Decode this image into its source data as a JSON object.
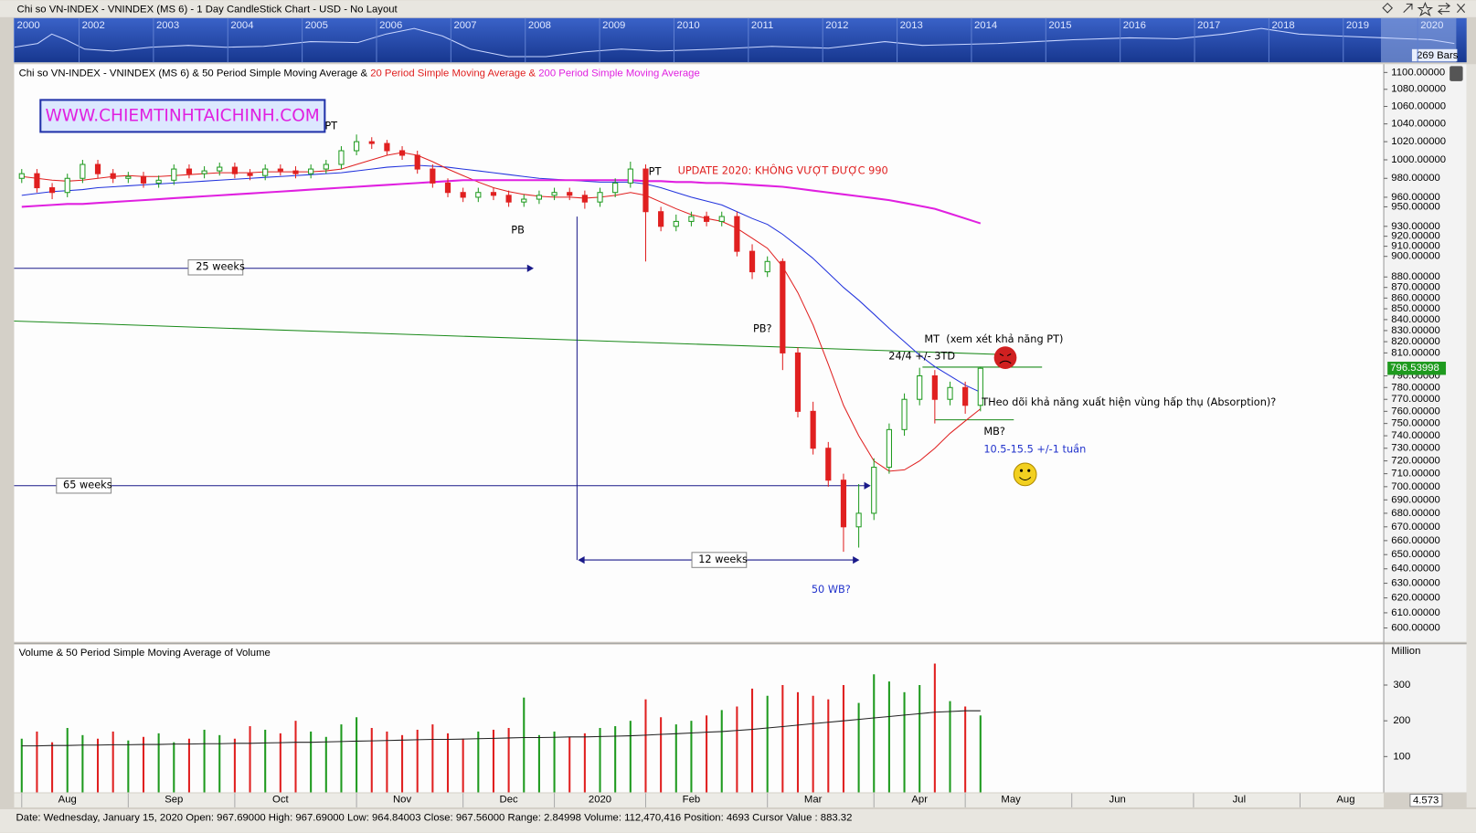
{
  "window": {
    "title": "Chi so VN-INDEX - VNINDEX (MS 6) - 1 Day CandleStick Chart - USD - No Layout"
  },
  "overview": {
    "years": [
      2000,
      2002,
      2003,
      2004,
      2005,
      2006,
      2007,
      2008,
      2009,
      2010,
      2011,
      2012,
      2013,
      2014,
      2015,
      2016,
      2017,
      2018,
      2019,
      2020
    ],
    "bars_label": "269 Bars"
  },
  "status_bar": {
    "text": "Date: Wednesday, January 15, 2020 Open: 967.69000 High: 967.69000 Low: 964.84003 Close: 967.56000 Range: 2.84998 Volume: 112,470,416 Position: 4693 Cursor Value : 883.32",
    "zoom": "4.573"
  },
  "chart_data": [
    {
      "type": "candlestick",
      "title": "Chi so VN-INDEX - VNINDEX (MS 6)",
      "title_joiner": " & ",
      "log_scale": true,
      "up_color": "#1e9a1e",
      "down_color": "#e02020",
      "categories": [
        null,
        null,
        null,
        "Aug",
        null,
        null,
        null,
        null,
        null,
        null,
        "Sep",
        null,
        null,
        null,
        null,
        null,
        null,
        "Oct",
        null,
        null,
        null,
        null,
        null,
        null,
        null,
        "Nov",
        null,
        null,
        null,
        null,
        null,
        null,
        "Dec",
        null,
        null,
        null,
        null,
        null,
        "2020",
        null,
        null,
        null,
        null,
        null,
        "Feb",
        null,
        null,
        null,
        null,
        null,
        null,
        null,
        "Mar",
        null,
        null,
        null,
        null,
        null,
        null,
        "Apr",
        null,
        null,
        null,
        null,
        null,
        "May",
        null,
        null,
        null,
        null,
        null,
        null,
        "Jun",
        null,
        null,
        null,
        null,
        null,
        null,
        null,
        "Jul",
        null,
        null,
        null,
        null,
        null,
        null,
        "Aug",
        null,
        null
      ],
      "open": [
        980,
        985,
        970,
        965,
        980,
        995,
        985,
        980,
        982,
        975,
        978,
        990,
        985,
        988,
        992,
        985,
        983,
        990,
        988,
        985,
        990,
        995,
        1010,
        1020,
        1018,
        1010,
        1005,
        990,
        975,
        965,
        960,
        965,
        962,
        955,
        958,
        962,
        965,
        962,
        955,
        965,
        975,
        990,
        945,
        930,
        935,
        940,
        935,
        940,
        905,
        885,
        895,
        810,
        760,
        730,
        705,
        670,
        680,
        715,
        745,
        770,
        790,
        770,
        780,
        765,
        null,
        null,
        null,
        null,
        null,
        null,
        null,
        null,
        null,
        null,
        null,
        null,
        null,
        null,
        null,
        null,
        null,
        null,
        null,
        null,
        null,
        null,
        null,
        null,
        null,
        null
      ],
      "high": [
        990,
        990,
        975,
        985,
        1000,
        1000,
        990,
        987,
        987,
        983,
        995,
        995,
        993,
        997,
        997,
        990,
        995,
        995,
        993,
        995,
        1000,
        1015,
        1028,
        1025,
        1022,
        1015,
        1010,
        995,
        980,
        970,
        970,
        970,
        967,
        963,
        967,
        970,
        970,
        967,
        970,
        980,
        998,
        995,
        950,
        942,
        945,
        945,
        945,
        945,
        912,
        900,
        898,
        815,
        768,
        735,
        710,
        702,
        722,
        750,
        775,
        797,
        795,
        785,
        785,
        798,
        null,
        null,
        null,
        null,
        null,
        null,
        null,
        null,
        null,
        null,
        null,
        null,
        null,
        null,
        null,
        null,
        null,
        null,
        null,
        null,
        null,
        null,
        null,
        null,
        null,
        null
      ],
      "low": [
        975,
        965,
        958,
        960,
        975,
        980,
        975,
        975,
        970,
        970,
        973,
        980,
        980,
        983,
        980,
        978,
        978,
        983,
        980,
        980,
        985,
        990,
        1005,
        1012,
        1005,
        1000,
        985,
        970,
        960,
        955,
        955,
        957,
        950,
        950,
        953,
        957,
        957,
        948,
        950,
        960,
        970,
        895,
        925,
        925,
        930,
        930,
        930,
        900,
        878,
        880,
        795,
        755,
        725,
        700,
        652,
        655,
        675,
        710,
        740,
        765,
        750,
        765,
        758,
        760,
        null,
        null,
        null,
        null,
        null,
        null,
        null,
        null,
        null,
        null,
        null,
        null,
        null,
        null,
        null,
        null,
        null,
        null,
        null,
        null,
        null,
        null,
        null,
        null,
        null,
        null
      ],
      "close": [
        985,
        970,
        965,
        980,
        995,
        985,
        980,
        982,
        975,
        978,
        990,
        985,
        988,
        992,
        985,
        983,
        990,
        988,
        985,
        990,
        995,
        1010,
        1020,
        1018,
        1010,
        1005,
        990,
        975,
        965,
        960,
        965,
        962,
        955,
        958,
        962,
        965,
        962,
        955,
        965,
        975,
        990,
        945,
        930,
        935,
        940,
        935,
        940,
        905,
        885,
        895,
        810,
        760,
        730,
        705,
        670,
        680,
        715,
        745,
        770,
        790,
        770,
        780,
        765,
        796.53998,
        null,
        null,
        null,
        null,
        null,
        null,
        null,
        null,
        null,
        null,
        null,
        null,
        null,
        null,
        null,
        null,
        null,
        null,
        null,
        null,
        null,
        null,
        null,
        null,
        null,
        null
      ],
      "ylim": [
        591,
        1110
      ],
      "yticks": [
        {
          "value": 1100,
          "label": "1100.00000"
        },
        {
          "value": 1080,
          "label": "1080.00000"
        },
        {
          "value": 1060,
          "label": "1060.00000"
        },
        {
          "value": 1040,
          "label": "1040.00000"
        },
        {
          "value": 1020,
          "label": "1020.00000"
        },
        {
          "value": 1000,
          "label": "1000.00000"
        },
        {
          "value": 980,
          "label": "980.00000"
        },
        {
          "value": 960,
          "label": "960.00000"
        },
        {
          "value": 950,
          "label": "950.00000"
        },
        {
          "value": 930,
          "label": "930.00000"
        },
        {
          "value": 920,
          "label": "920.00000"
        },
        {
          "value": 910,
          "label": "910.00000"
        },
        {
          "value": 900,
          "label": "900.00000"
        },
        {
          "value": 880,
          "label": "880.00000"
        },
        {
          "value": 870,
          "label": "870.00000"
        },
        {
          "value": 860,
          "label": "860.00000"
        },
        {
          "value": 850,
          "label": "850.00000"
        },
        {
          "value": 840,
          "label": "840.00000"
        },
        {
          "value": 830,
          "label": "830.00000"
        },
        {
          "value": 820,
          "label": "820.00000"
        },
        {
          "value": 810,
          "label": "810.00000"
        },
        {
          "value": 790,
          "label": "790.00000"
        },
        {
          "value": 780,
          "label": "780.00000"
        },
        {
          "value": 770,
          "label": "770.00000"
        },
        {
          "value": 760,
          "label": "760.00000"
        },
        {
          "value": 750,
          "label": "750.00000"
        },
        {
          "value": 740,
          "label": "740.00000"
        },
        {
          "value": 730,
          "label": "730.00000"
        },
        {
          "value": 720,
          "label": "720.00000"
        },
        {
          "value": 710,
          "label": "710.00000"
        },
        {
          "value": 700,
          "label": "700.00000"
        },
        {
          "value": 690,
          "label": "690.00000"
        },
        {
          "value": 680,
          "label": "680.00000"
        },
        {
          "value": 670,
          "label": "670.00000"
        },
        {
          "value": 660,
          "label": "660.00000"
        },
        {
          "value": 650,
          "label": "650.00000"
        },
        {
          "value": 640,
          "label": "640.00000"
        },
        {
          "value": 630,
          "label": "630.00000"
        },
        {
          "value": 620,
          "label": "620.00000"
        },
        {
          "value": 610,
          "label": "610.00000"
        },
        {
          "value": 600,
          "label": "600.00000"
        }
      ],
      "series": [
        {
          "name": "50 Period Simple Moving Average",
          "color": "#2233dd",
          "values": [
            962,
            964,
            966,
            967,
            968,
            970,
            971,
            972,
            973,
            974,
            975,
            976,
            977,
            978,
            979,
            980,
            981,
            982,
            983,
            984,
            985,
            986,
            988,
            990,
            992,
            993,
            994,
            993,
            992,
            990,
            988,
            986,
            984,
            982,
            980,
            979,
            978,
            977,
            976,
            976,
            976,
            974,
            970,
            965,
            960,
            956,
            952,
            945,
            938,
            932,
            922,
            910,
            898,
            884,
            870,
            858,
            845,
            832,
            820,
            808,
            798,
            790,
            782,
            776,
            null,
            null,
            null,
            null,
            null,
            null,
            null,
            null,
            null,
            null,
            null,
            null,
            null,
            null,
            null,
            null,
            null,
            null,
            null,
            null,
            null,
            null,
            null,
            null,
            null,
            null
          ]
        },
        {
          "name": "20 Period Simple Moving Average",
          "color": "#e02020",
          "values": [
            982,
            980,
            978,
            977,
            978,
            980,
            982,
            983,
            982,
            982,
            983,
            984,
            985,
            986,
            986,
            986,
            987,
            987,
            987,
            987,
            988,
            990,
            995,
            1000,
            1005,
            1008,
            1005,
            998,
            990,
            983,
            976,
            970,
            966,
            963,
            961,
            960,
            960,
            959,
            960,
            962,
            965,
            962,
            955,
            948,
            942,
            938,
            935,
            928,
            918,
            908,
            890,
            865,
            835,
            800,
            765,
            740,
            720,
            712,
            713,
            720,
            730,
            742,
            752,
            762,
            null,
            null,
            null,
            null,
            null,
            null,
            null,
            null,
            null,
            null,
            null,
            null,
            null,
            null,
            null,
            null,
            null,
            null,
            null,
            null,
            null,
            null,
            null,
            null,
            null,
            null
          ]
        },
        {
          "name": "200 Period Simple Moving Average",
          "color": "#e020e0",
          "values": [
            950,
            951,
            952,
            953,
            953,
            954,
            955,
            956,
            957,
            958,
            959,
            960,
            961,
            962,
            963,
            964,
            965,
            966,
            967,
            968,
            969,
            970,
            971,
            972,
            973,
            974,
            975,
            976,
            977,
            978,
            978,
            978,
            978,
            978,
            978,
            978,
            978,
            978,
            978,
            978,
            978,
            977,
            977,
            976,
            976,
            975,
            975,
            974,
            973,
            972,
            971,
            969,
            967,
            965,
            963,
            961,
            959,
            957,
            954,
            951,
            948,
            943,
            938,
            933,
            null,
            null,
            null,
            null,
            null,
            null,
            null,
            null,
            null,
            null,
            null,
            null,
            null,
            null,
            null,
            null,
            null,
            null,
            null,
            null,
            null,
            null,
            null,
            null,
            null,
            null
          ]
        }
      ],
      "annotations": [
        "WWW.CHIEMTINHTAICHINH.COM",
        "PT",
        "PT",
        "PB",
        "UPDATE 2020: KHÔNG VƯỢT ĐƯỢC 990",
        "25 weeks",
        "65 weeks",
        "12 weeks",
        "PB?",
        "50 WB?",
        "MT  (xem xét khả năng PT)",
        "24/4 +/- 3TD",
        "THeo dõi khả năng xuất hiện vùng hấp thụ (Absorption)?",
        "MB?",
        "10.5-15.5 +/-1 tuần"
      ]
    },
    {
      "type": "bar",
      "title": "Volume & 50 Period Simple Moving Average of Volume",
      "y_axis_label": "Million",
      "ylim": [
        0,
        413
      ],
      "yticks": [
        100,
        200,
        300
      ],
      "values": [
        150,
        170,
        140,
        180,
        160,
        150,
        170,
        145,
        155,
        165,
        140,
        150,
        175,
        160,
        150,
        185,
        175,
        165,
        200,
        170,
        155,
        190,
        210,
        180,
        170,
        160,
        175,
        190,
        165,
        150,
        170,
        175,
        180,
        265,
        160,
        170,
        155,
        165,
        180,
        185,
        200,
        260,
        210,
        190,
        200,
        215,
        230,
        240,
        290,
        270,
        300,
        280,
        270,
        260,
        300,
        250,
        330,
        310,
        280,
        300,
        360,
        255,
        240,
        215,
        null,
        null,
        null,
        null,
        null,
        null,
        null,
        null,
        null,
        null,
        null,
        null,
        null,
        null,
        null,
        null,
        null,
        null,
        null,
        null,
        null,
        null,
        null,
        null,
        null,
        null
      ],
      "moving_average": [
        130,
        130,
        131,
        131,
        132,
        132,
        133,
        133,
        134,
        134,
        135,
        135,
        136,
        136,
        137,
        137,
        138,
        139,
        140,
        140,
        141,
        142,
        143,
        144,
        145,
        146,
        147,
        148,
        148,
        149,
        150,
        151,
        152,
        153,
        153,
        154,
        155,
        155,
        156,
        157,
        158,
        160,
        162,
        164,
        166,
        168,
        170,
        173,
        176,
        180,
        184,
        188,
        192,
        196,
        200,
        204,
        208,
        212,
        216,
        220,
        224,
        226,
        228,
        228,
        null,
        null,
        null,
        null,
        null,
        null,
        null,
        null,
        null,
        null,
        null,
        null,
        null,
        null,
        null,
        null,
        null,
        null,
        null,
        null,
        null,
        null,
        null,
        null,
        null,
        null
      ]
    }
  ]
}
